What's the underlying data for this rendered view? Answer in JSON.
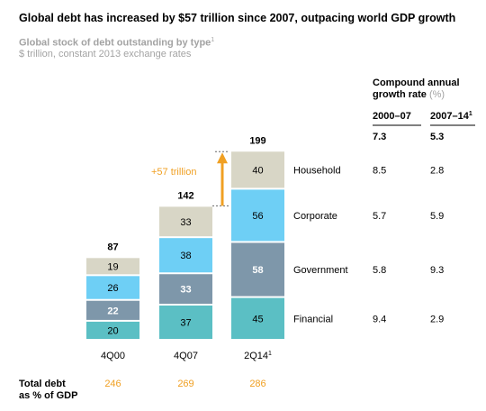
{
  "title": "Global debt has increased by $57 trillion since 2007, outpacing world GDP growth",
  "subtitle": "Global stock of debt outstanding by type",
  "subtitle_note": "1",
  "unit_note": "$ trillion, constant 2013 exchange rates",
  "chart_data": {
    "type": "bar",
    "stacked": true,
    "categories": [
      "4Q00",
      "4Q07",
      "2Q14"
    ],
    "category_note": [
      "",
      "",
      "1"
    ],
    "series": [
      {
        "name": "Financial",
        "values": [
          20,
          37,
          45
        ],
        "color": "#5bbfc4"
      },
      {
        "name": "Government",
        "values": [
          22,
          33,
          58
        ],
        "color": "#7e97aa"
      },
      {
        "name": "Corporate",
        "values": [
          26,
          38,
          56
        ],
        "color": "#6ecff5"
      },
      {
        "name": "Household",
        "values": [
          19,
          33,
          40
        ],
        "color": "#d8d6c6"
      }
    ],
    "totals": [
      87,
      142,
      199
    ],
    "annotation": {
      "label": "+57 trillion",
      "color": "#f0a023"
    },
    "growth_table": {
      "header": "Compound annual growth rate",
      "header_unit": "(%)",
      "columns": [
        "2000–07",
        "2007–14"
      ],
      "column_note": [
        "",
        "1"
      ],
      "total_row": [
        "7.3",
        "5.3"
      ],
      "rows": {
        "Household": [
          "8.5",
          "2.8"
        ],
        "Corporate": [
          "5.7",
          "5.9"
        ],
        "Government": [
          "5.8",
          "9.3"
        ],
        "Financial": [
          "9.4",
          "2.9"
        ]
      }
    },
    "gdp_row": {
      "label_line1": "Total debt",
      "label_line2": "as % of GDP",
      "values": [
        "246",
        "269",
        "286"
      ],
      "color": "#f0a023"
    }
  }
}
